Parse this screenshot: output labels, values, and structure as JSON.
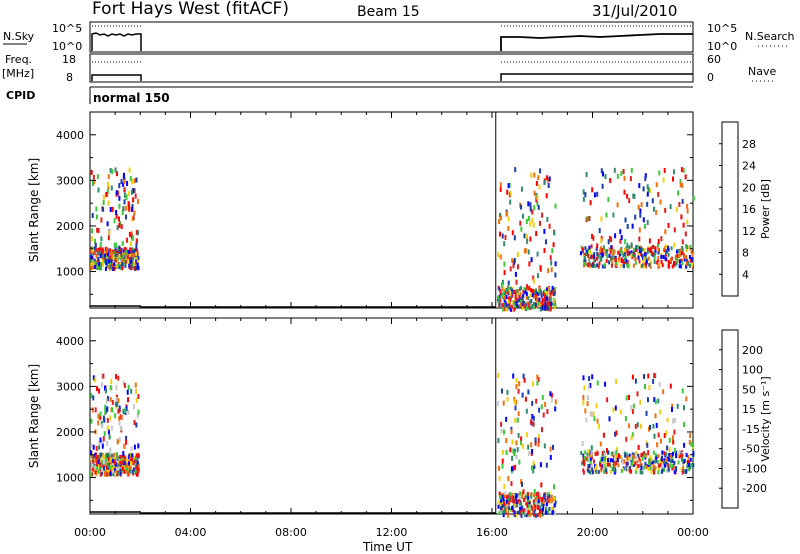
{
  "header": {
    "station": "Fort Hays West (fitACF)",
    "beam": "Beam 15",
    "date": "31/Jul/2010"
  },
  "strip_labels": {
    "nsky": "N.Sky",
    "nsearch": "N.Search",
    "freq": "Freq.",
    "mhz": "[MHz]",
    "nave": "Nave",
    "cpid": "CPID",
    "cpid_value": "normal 150",
    "nsky_ticks": [
      "10^5",
      "10^0"
    ],
    "nsearch_ticks": [
      "10^5",
      "10^0"
    ],
    "freq_ticks": [
      "18",
      "8"
    ],
    "nave_ticks": [
      "60",
      "0"
    ]
  },
  "chart_data": [
    {
      "type": "heatmap",
      "name": "power",
      "ylabel": "Slant Range [km]",
      "xlabel": "Time UT",
      "x_ticks": [
        "00:00",
        "04:00",
        "08:00",
        "12:00",
        "16:00",
        "20:00",
        "00:00"
      ],
      "y_ticks": [
        1000,
        2000,
        3000,
        4000
      ],
      "ylim": [
        200,
        4500
      ],
      "xlim": [
        0,
        24
      ],
      "colorbar": {
        "label": "Power [dB]",
        "ticks": [
          4,
          8,
          12,
          16,
          20,
          24,
          28
        ],
        "colors": [
          "#0000ff",
          "#1c3ca8",
          "#2f8a6e",
          "#3cc83c",
          "#f0d010",
          "#f07010",
          "#e02020",
          "#ff0000"
        ]
      },
      "scatter_regions": [
        {
          "t_start": 0.0,
          "t_end": 1.9,
          "range_start": 1100,
          "range_end": 1550
        },
        {
          "t_start": 16.2,
          "t_end": 18.5,
          "range_start": 200,
          "range_end": 700
        },
        {
          "t_start": 19.5,
          "t_end": 24.0,
          "range_start": 1150,
          "range_end": 1600
        }
      ]
    },
    {
      "type": "heatmap",
      "name": "velocity",
      "ylabel": "Slant Range [km]",
      "xlabel": "Time UT",
      "x_ticks": [
        "00:00",
        "04:00",
        "08:00",
        "12:00",
        "16:00",
        "20:00",
        "00:00"
      ],
      "y_ticks": [
        1000,
        2000,
        3000,
        4000
      ],
      "ylim": [
        200,
        4500
      ],
      "xlim": [
        0,
        24
      ],
      "colorbar": {
        "label": "Velocity [m s⁻¹]",
        "ticks": [
          200,
          100,
          50,
          15,
          -15,
          -50,
          -100,
          -200
        ],
        "colors": [
          "#0000ff",
          "#1c3ca8",
          "#2f8a6e",
          "#3cc83c",
          "#c8c8c8",
          "#f0d010",
          "#f07010",
          "#e02020",
          "#ff0000"
        ]
      },
      "scatter_regions": [
        {
          "t_start": 0.0,
          "t_end": 1.9,
          "range_start": 1100,
          "range_end": 1550
        },
        {
          "t_start": 16.2,
          "t_end": 18.5,
          "range_start": 200,
          "range_end": 700
        },
        {
          "t_start": 19.5,
          "t_end": 24.0,
          "range_start": 1150,
          "range_end": 1600
        }
      ]
    }
  ],
  "operating_periods": [
    {
      "t_start": 0.0,
      "t_end": 2.0
    },
    {
      "t_start": 16.15,
      "t_end": 24.0
    }
  ]
}
